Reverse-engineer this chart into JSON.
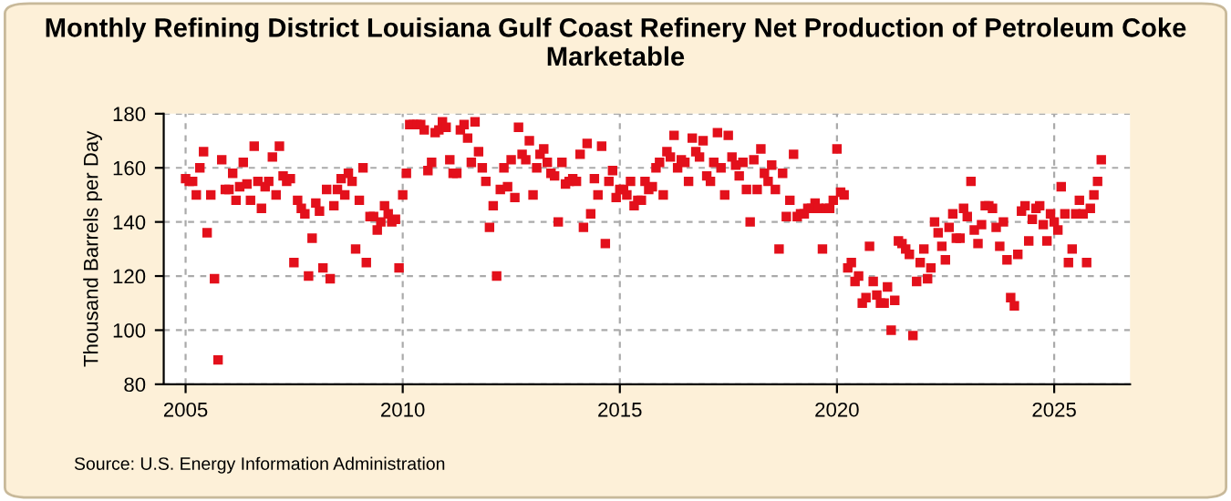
{
  "chart_data": {
    "type": "scatter",
    "title": "Monthly Refining District Louisiana Gulf Coast Refinery Net Production of Petroleum Coke Marketable",
    "ylabel": "Thousand Barrels per Day",
    "annotations": [
      "Source: U.S. Energy Information Administration"
    ],
    "marker": "square",
    "grid": true,
    "legend": false,
    "xlim": [
      "2004-07-01",
      "2026-10-01"
    ],
    "xticks": [
      {
        "value": "2005-01-01",
        "label": "2005"
      },
      {
        "value": "2010-01-01",
        "label": "2010"
      },
      {
        "value": "2015-01-01",
        "label": "2015"
      },
      {
        "value": "2020-01-01",
        "label": "2020"
      },
      {
        "value": "2025-01-01",
        "label": "2025"
      }
    ],
    "ylim": [
      80,
      180
    ],
    "yticks": [
      80,
      100,
      120,
      140,
      160,
      180
    ],
    "series": [
      {
        "color": "#e3101b",
        "x": [
          "2005-01",
          "2005-02",
          "2005-03",
          "2005-04",
          "2005-05",
          "2005-06",
          "2005-07",
          "2005-08",
          "2005-09",
          "2005-10",
          "2005-11",
          "2005-12",
          "2006-01",
          "2006-02",
          "2006-03",
          "2006-04",
          "2006-05",
          "2006-06",
          "2006-07",
          "2006-08",
          "2006-09",
          "2006-10",
          "2006-11",
          "2006-12",
          "2007-01",
          "2007-02",
          "2007-03",
          "2007-04",
          "2007-05",
          "2007-06",
          "2007-07",
          "2007-08",
          "2007-09",
          "2007-10",
          "2007-11",
          "2007-12",
          "2008-01",
          "2008-02",
          "2008-03",
          "2008-04",
          "2008-05",
          "2008-06",
          "2008-07",
          "2008-08",
          "2008-09",
          "2008-10",
          "2008-11",
          "2008-12",
          "2009-01",
          "2009-02",
          "2009-03",
          "2009-04",
          "2009-05",
          "2009-06",
          "2009-07",
          "2009-08",
          "2009-09",
          "2009-10",
          "2009-11",
          "2009-12",
          "2010-01",
          "2010-02",
          "2010-03",
          "2010-04",
          "2010-05",
          "2010-06",
          "2010-07",
          "2010-08",
          "2010-09",
          "2010-10",
          "2010-11",
          "2010-12",
          "2011-01",
          "2011-02",
          "2011-03",
          "2011-04",
          "2011-05",
          "2011-06",
          "2011-07",
          "2011-08",
          "2011-09",
          "2011-10",
          "2011-11",
          "2011-12",
          "2012-01",
          "2012-02",
          "2012-03",
          "2012-04",
          "2012-05",
          "2012-06",
          "2012-07",
          "2012-08",
          "2012-09",
          "2012-10",
          "2012-11",
          "2012-12",
          "2013-01",
          "2013-02",
          "2013-03",
          "2013-04",
          "2013-05",
          "2013-06",
          "2013-07",
          "2013-08",
          "2013-09",
          "2013-10",
          "2013-11",
          "2013-12",
          "2014-01",
          "2014-02",
          "2014-03",
          "2014-04",
          "2014-05",
          "2014-06",
          "2014-07",
          "2014-08",
          "2014-09",
          "2014-10",
          "2014-11",
          "2014-12",
          "2015-01",
          "2015-02",
          "2015-03",
          "2015-04",
          "2015-05",
          "2015-06",
          "2015-07",
          "2015-08",
          "2015-09",
          "2015-10",
          "2015-11",
          "2015-12",
          "2016-01",
          "2016-02",
          "2016-03",
          "2016-04",
          "2016-05",
          "2016-06",
          "2016-07",
          "2016-08",
          "2016-09",
          "2016-10",
          "2016-11",
          "2016-12",
          "2017-01",
          "2017-02",
          "2017-03",
          "2017-04",
          "2017-05",
          "2017-06",
          "2017-07",
          "2017-08",
          "2017-09",
          "2017-10",
          "2017-11",
          "2017-12",
          "2018-01",
          "2018-02",
          "2018-03",
          "2018-04",
          "2018-05",
          "2018-06",
          "2018-07",
          "2018-08",
          "2018-09",
          "2018-10",
          "2018-11",
          "2018-12",
          "2019-01",
          "2019-02",
          "2019-03",
          "2019-04",
          "2019-05",
          "2019-06",
          "2019-07",
          "2019-08",
          "2019-09",
          "2019-10",
          "2019-11",
          "2019-12",
          "2020-01",
          "2020-02",
          "2020-03",
          "2020-04",
          "2020-05",
          "2020-06",
          "2020-07",
          "2020-08",
          "2020-09",
          "2020-10",
          "2020-11",
          "2020-12",
          "2021-01",
          "2021-02",
          "2021-03",
          "2021-04",
          "2021-05",
          "2021-06",
          "2021-07",
          "2021-08",
          "2021-09",
          "2021-10",
          "2021-11",
          "2021-12",
          "2022-01",
          "2022-02",
          "2022-03",
          "2022-04",
          "2022-05",
          "2022-06",
          "2022-07",
          "2022-08",
          "2022-09",
          "2022-10",
          "2022-11",
          "2022-12",
          "2023-01",
          "2023-02",
          "2023-03",
          "2023-04",
          "2023-05",
          "2023-06",
          "2023-07",
          "2023-08",
          "2023-09",
          "2023-10",
          "2023-11",
          "2023-12",
          "2024-01",
          "2024-02",
          "2024-03",
          "2024-04",
          "2024-05",
          "2024-06",
          "2024-07",
          "2024-08",
          "2024-09",
          "2024-10",
          "2024-11",
          "2024-12",
          "2025-01",
          "2025-02",
          "2025-03",
          "2025-04",
          "2025-05",
          "2025-06",
          "2025-07",
          "2025-08",
          "2025-09",
          "2025-10",
          "2025-11",
          "2025-12",
          "2026-01",
          "2026-02"
        ],
        "values": [
          156,
          155,
          155,
          150,
          160,
          166,
          136,
          150,
          119,
          89,
          163,
          152,
          152,
          158,
          148,
          153,
          162,
          154,
          148,
          168,
          155,
          145,
          153,
          155,
          164,
          150,
          168,
          157,
          155,
          156,
          125,
          148,
          145,
          143,
          120,
          134,
          147,
          144,
          123,
          152,
          119,
          146,
          152,
          156,
          150,
          158,
          155,
          130,
          148,
          160,
          125,
          142,
          142,
          137,
          140,
          146,
          143,
          140,
          141,
          123,
          150,
          158,
          176,
          176,
          176,
          176,
          174,
          159,
          162,
          173,
          174,
          177,
          175,
          163,
          158,
          158,
          174,
          176,
          171,
          162,
          177,
          166,
          160,
          155,
          138,
          146,
          120,
          152,
          160,
          153,
          163,
          149,
          175,
          165,
          163,
          170,
          150,
          160,
          165,
          167,
          162,
          158,
          157,
          140,
          162,
          154,
          155,
          156,
          155,
          165,
          138,
          169,
          143,
          156,
          150,
          168,
          132,
          155,
          159,
          149,
          152,
          152,
          150,
          155,
          146,
          148,
          148,
          155,
          152,
          153,
          160,
          162,
          150,
          166,
          164,
          172,
          160,
          163,
          162,
          155,
          171,
          166,
          164,
          170,
          157,
          155,
          162,
          173,
          160,
          150,
          172,
          164,
          161,
          157,
          162,
          152,
          140,
          163,
          152,
          167,
          158,
          155,
          161,
          152,
          130,
          158,
          142,
          148,
          165,
          142,
          143,
          143,
          145,
          145,
          147,
          145,
          130,
          145,
          145,
          148,
          167,
          151,
          150,
          123,
          125,
          118,
          120,
          110,
          112,
          131,
          118,
          113,
          110,
          110,
          116,
          100,
          111,
          133,
          132,
          130,
          128,
          98,
          118,
          125,
          130,
          119,
          123,
          140,
          136,
          131,
          126,
          138,
          143,
          134,
          134,
          145,
          142,
          155,
          137,
          132,
          139,
          146,
          146,
          145,
          138,
          131,
          140,
          126,
          112,
          109,
          128,
          144,
          146,
          133,
          141,
          145,
          146,
          139,
          133,
          143,
          140,
          137,
          153,
          143,
          125,
          130,
          143,
          148,
          143,
          125,
          145,
          150,
          155,
          163
        ]
      }
    ]
  }
}
